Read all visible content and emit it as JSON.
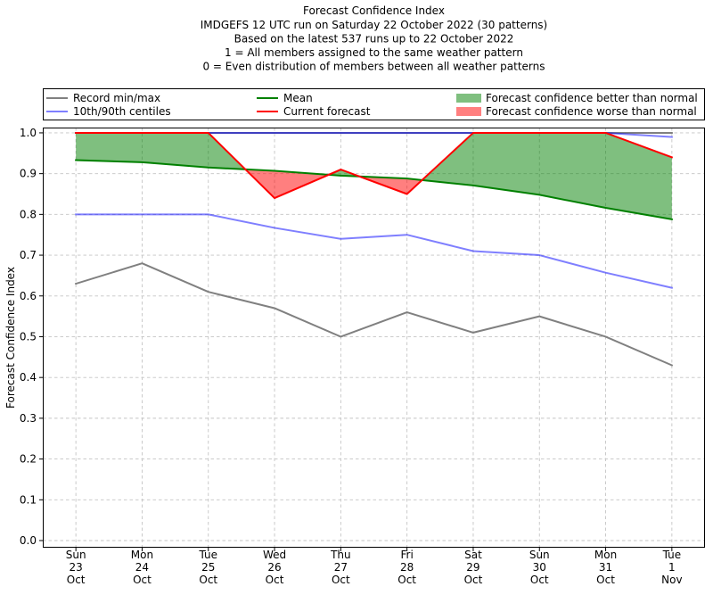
{
  "chart_data": {
    "type": "line",
    "title": "Forecast Confidence Index",
    "subtitle": [
      "IMDGEFS 12 UTC run on Saturday 22 October 2022 (30 patterns)",
      "Based on the latest 537 runs up to 22 October 2022",
      "1 = All members assigned to the same weather pattern",
      "0 = Even distribution of members between all weather patterns"
    ],
    "ylabel": "Forecast Confidence Index",
    "categories": [
      [
        "Sun",
        "23",
        "Oct"
      ],
      [
        "Mon",
        "24",
        "Oct"
      ],
      [
        "Tue",
        "25",
        "Oct"
      ],
      [
        "Wed",
        "26",
        "Oct"
      ],
      [
        "Thu",
        "27",
        "Oct"
      ],
      [
        "Fri",
        "28",
        "Oct"
      ],
      [
        "Sat",
        "29",
        "Oct"
      ],
      [
        "Sun",
        "30",
        "Oct"
      ],
      [
        "Mon",
        "31",
        "Oct"
      ],
      [
        "Tue",
        "1",
        "Nov"
      ]
    ],
    "yticks": [
      "0.0",
      "0.1",
      "0.2",
      "0.3",
      "0.4",
      "0.5",
      "0.6",
      "0.7",
      "0.8",
      "0.9",
      "1.0"
    ],
    "ylim": [
      -0.0175,
      1.013
    ],
    "grid": true,
    "legend_position": "top",
    "series": [
      {
        "name": "Record min/max",
        "color": "#808080",
        "upper": [
          1.0,
          1.0,
          1.0,
          1.0,
          1.0,
          1.0,
          1.0,
          1.0,
          1.0,
          1.0
        ],
        "lower": [
          0.63,
          0.68,
          0.61,
          0.57,
          0.5,
          0.56,
          0.51,
          0.55,
          0.5,
          0.43
        ]
      },
      {
        "name": "10th/90th centiles",
        "color": "#0000ff",
        "upper": [
          1.0,
          1.0,
          1.0,
          1.0,
          1.0,
          1.0,
          1.0,
          1.0,
          1.0,
          0.99
        ],
        "lower": [
          0.8,
          0.8,
          0.8,
          0.767,
          0.74,
          0.75,
          0.71,
          0.7,
          0.657,
          0.62
        ]
      },
      {
        "name": "Mean",
        "color": "#008000",
        "values": [
          0.933,
          0.928,
          0.915,
          0.907,
          0.895,
          0.888,
          0.871,
          0.848,
          0.816,
          0.788
        ]
      },
      {
        "name": "Current forecast",
        "color": "#ff0000",
        "values": [
          1.0,
          1.0,
          1.0,
          0.84,
          0.91,
          0.85,
          1.0,
          1.0,
          1.0,
          0.94
        ]
      }
    ],
    "fills": [
      {
        "name": "Forecast confidence better than normal",
        "color": "#008000"
      },
      {
        "name": "Forecast confidence worse than normal",
        "color": "#ff0000"
      }
    ]
  }
}
